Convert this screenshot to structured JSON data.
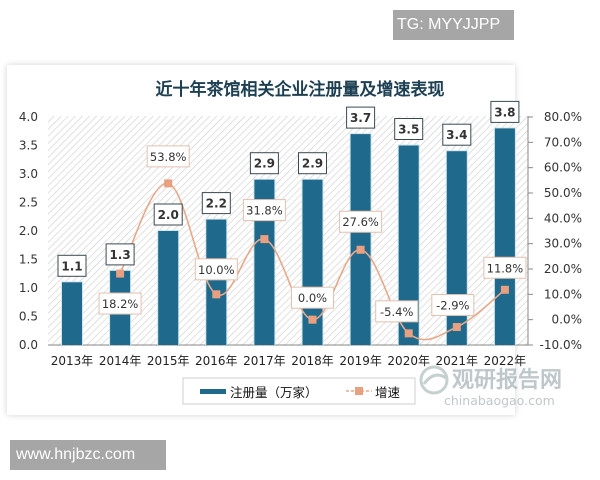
{
  "watermarks": {
    "top_right": "TG: MYYJJPP",
    "bottom_left": "www.hnjbzc.com",
    "logo_cn": "观研报告网",
    "logo_en": "chinabaogao.com"
  },
  "colors": {
    "bar": "#1f6a8c",
    "line": "#e8a88a",
    "marker": "#e8a080",
    "axis_text": "#333333",
    "title": "#1c3f52"
  },
  "chart_data": {
    "type": "bar+line",
    "title": "近十年茶馆相关企业注册量及增速表现",
    "categories": [
      "2013年",
      "2014年",
      "2015年",
      "2016年",
      "2017年",
      "2018年",
      "2019年",
      "2020年",
      "2021年",
      "2022年"
    ],
    "series": [
      {
        "name": "注册量（万家）",
        "type": "bar",
        "axis": "left",
        "values": [
          1.1,
          1.3,
          2.0,
          2.2,
          2.9,
          2.9,
          3.7,
          3.5,
          3.4,
          3.8
        ],
        "labels": [
          "1.1",
          "1.3",
          "2.0",
          "2.2",
          "2.9",
          "2.9",
          "3.7",
          "3.5",
          "3.4",
          "3.8"
        ]
      },
      {
        "name": "增速",
        "type": "line",
        "axis": "right",
        "values": [
          null,
          18.2,
          53.8,
          10.0,
          31.8,
          0.0,
          27.6,
          -5.4,
          -2.9,
          11.8
        ],
        "labels": [
          "",
          "18.2%",
          "53.8%",
          "10.0%",
          "31.8%",
          "0.0%",
          "27.6%",
          "-5.4%",
          "-2.9%",
          "11.8%"
        ]
      }
    ],
    "left_axis": {
      "ticks": [
        "0.0",
        "0.5",
        "1.0",
        "1.5",
        "2.0",
        "2.5",
        "3.0",
        "3.5",
        "4.0"
      ],
      "ylim": [
        0,
        4.0
      ]
    },
    "right_axis": {
      "ticks": [
        "-10.0%",
        "0.0%",
        "10.0%",
        "20.0%",
        "30.0%",
        "40.0%",
        "50.0%",
        "60.0%",
        "70.0%",
        "80.0%"
      ],
      "ylim": [
        -10,
        80
      ]
    },
    "legend": {
      "position": "bottom",
      "items": [
        "注册量（万家）",
        "增速"
      ]
    },
    "grid": false,
    "background": "diagonal hatch"
  }
}
